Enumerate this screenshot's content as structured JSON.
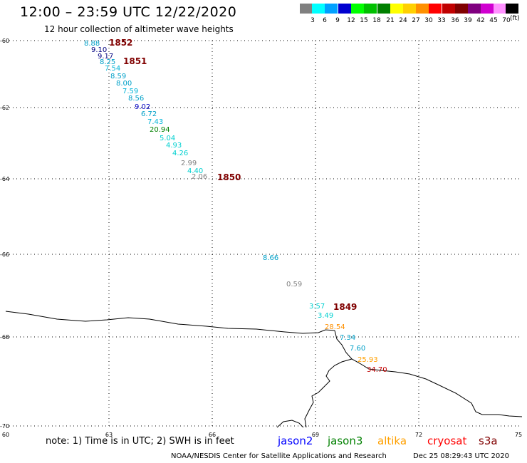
{
  "header": {
    "title": "12:00 – 23:59 UTC 12/22/2020",
    "subtitle": "12 hour collection of altimeter wave heights"
  },
  "legend": {
    "unit": "(ft)",
    "bins": [
      {
        "label": "3",
        "color": "#808080"
      },
      {
        "label": "6",
        "color": "#00ffff"
      },
      {
        "label": "9",
        "color": "#00a0ff"
      },
      {
        "label": "12",
        "color": "#0000d0"
      },
      {
        "label": "15",
        "color": "#00ff00"
      },
      {
        "label": "18",
        "color": "#00c000"
      },
      {
        "label": "21",
        "color": "#008000"
      },
      {
        "label": "24",
        "color": "#ffff00"
      },
      {
        "label": "27",
        "color": "#ffd000"
      },
      {
        "label": "30",
        "color": "#ff9000"
      },
      {
        "label": "33",
        "color": "#ff0000"
      },
      {
        "label": "36",
        "color": "#c00000"
      },
      {
        "label": "39",
        "color": "#800000"
      },
      {
        "label": "42",
        "color": "#800080"
      },
      {
        "label": "45",
        "color": "#d000d0"
      },
      {
        "label": "70",
        "color": "#ff90ff"
      },
      {
        "label": "",
        "color": "#000000"
      }
    ]
  },
  "axes": {
    "lat_labels": [
      "-60",
      "-62",
      "-64",
      "-66",
      "-68",
      "-70"
    ],
    "lon_labels": [
      "60",
      "63",
      "66",
      "69",
      "72",
      "75"
    ]
  },
  "times": [
    {
      "text": "1852"
    },
    {
      "text": "1851"
    },
    {
      "text": "1850"
    },
    {
      "text": "1849"
    }
  ],
  "observations": [
    {
      "value": "8.88",
      "color": "#00a0c8"
    },
    {
      "value": "9.10",
      "color": "#000080"
    },
    {
      "value": "9.17",
      "color": "#000080"
    },
    {
      "value": "8.25",
      "color": "#00a0c8"
    },
    {
      "value": "7.54",
      "color": "#00b4d8"
    },
    {
      "value": "8.59",
      "color": "#00a0c8"
    },
    {
      "value": "8.00",
      "color": "#00a0c8"
    },
    {
      "value": "7.59",
      "color": "#00b4d8"
    },
    {
      "value": "8.56",
      "color": "#00a0c8"
    },
    {
      "value": "9.02",
      "color": "#0000c0"
    },
    {
      "value": "6.72",
      "color": "#00a0c8"
    },
    {
      "value": "7.43",
      "color": "#00b4d8"
    },
    {
      "value": "20.94",
      "color": "#008000"
    },
    {
      "value": "5.04",
      "color": "#00d0d0"
    },
    {
      "value": "4.93",
      "color": "#00d0d0"
    },
    {
      "value": "4.26",
      "color": "#00d0d0"
    },
    {
      "value": "2.99",
      "color": "#808080"
    },
    {
      "value": "4.40",
      "color": "#00d0d0"
    },
    {
      "value": "2.06",
      "color": "#808080"
    },
    {
      "value": "8.66",
      "color": "#00a0c8"
    },
    {
      "value": "0.59",
      "color": "#808080"
    },
    {
      "value": "3.57",
      "color": "#00d0d0"
    },
    {
      "value": "3.49",
      "color": "#00d0d0"
    },
    {
      "value": "28.54",
      "color": "#ff9000"
    },
    {
      "value": "7.34",
      "color": "#00a0c8"
    },
    {
      "value": "7.60",
      "color": "#00a0c8"
    },
    {
      "value": "25.93",
      "color": "#ffa000"
    },
    {
      "value": "34.70",
      "color": "#c00000"
    }
  ],
  "footer": {
    "note": "note: 1) Time is in UTC; 2) SWH is in feet",
    "satellites": [
      {
        "name": "jason2",
        "color": "#0000ff"
      },
      {
        "name": "jason3",
        "color": "#008000"
      },
      {
        "name": "altika",
        "color": "#ffa000"
      },
      {
        "name": "cryosat",
        "color": "#ff0000"
      },
      {
        "name": "s3a",
        "color": "#800000"
      }
    ],
    "credit": "NOAA/NESDIS Center for Satellite Applications and Research",
    "timestamp": "Dec 25 08:29:43 UTC 2020"
  }
}
